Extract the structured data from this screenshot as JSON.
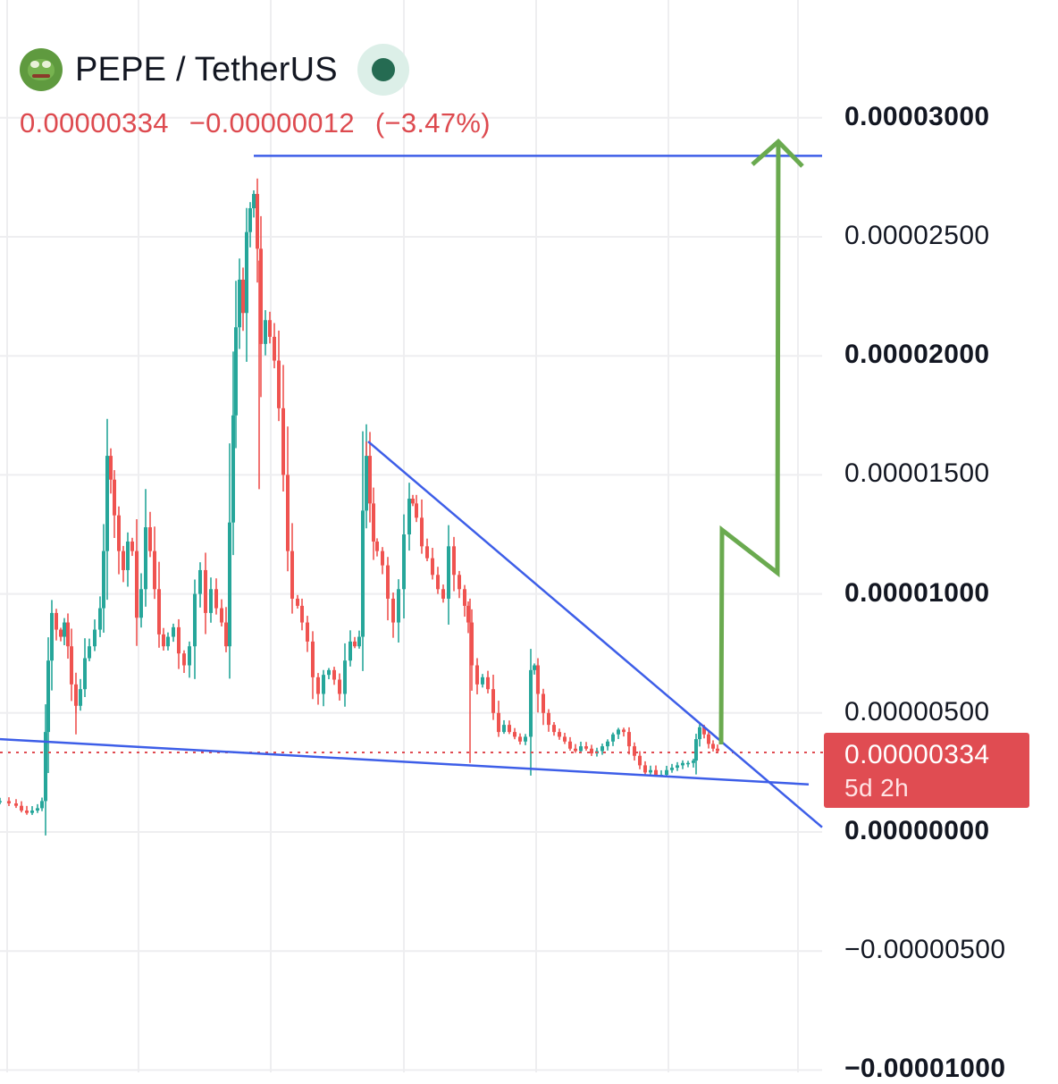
{
  "header": {
    "symbol": "PEPE / TetherUS",
    "logo_icon": "pepe-frog-icon",
    "status_icon": "market-status-dot-icon"
  },
  "quote": {
    "last": "0.00000334",
    "change": "−0.00000012",
    "change_pct": "(−3.47%)"
  },
  "price_tag": {
    "price": "0.00000334",
    "countdown": "5d 2h"
  },
  "colors": {
    "up": "#26a69a",
    "down": "#ef5350",
    "trendline": "#3d5ee8",
    "projection": "#6aaa4f",
    "grid": "#eeeef0",
    "last_price": "#e04c52"
  },
  "chart_data": {
    "type": "candlestick",
    "title": "PEPE / TetherUS",
    "xlabel": "",
    "ylabel": "",
    "ylim": [
      -1e-05,
      3.1e-05
    ],
    "yticks": [
      {
        "value": 3e-05,
        "label": "0.00003000",
        "bold": true
      },
      {
        "value": 2.5e-05,
        "label": "0.00002500",
        "bold": false
      },
      {
        "value": 2e-05,
        "label": "0.00002000",
        "bold": true
      },
      {
        "value": 1.5e-05,
        "label": "0.00001500",
        "bold": false
      },
      {
        "value": 1e-05,
        "label": "0.00001000",
        "bold": true
      },
      {
        "value": 5e-06,
        "label": "0.00000500",
        "bold": false
      },
      {
        "value": 0.0,
        "label": "0.00000000",
        "bold": true
      },
      {
        "value": -5e-06,
        "label": "−0.00000500",
        "bold": false
      },
      {
        "value": -1e-05,
        "label": "−0.00001000",
        "bold": true
      }
    ],
    "grid": true,
    "last_price": 3.34e-06,
    "price_path": [
      [
        0,
        1.3e-06
      ],
      [
        10,
        1.2e-06
      ],
      [
        18,
        1.1e-06
      ],
      [
        24,
        9e-07
      ],
      [
        30,
        8e-07
      ],
      [
        36,
        9e-07
      ],
      [
        42,
        1e-06
      ],
      [
        47,
        1.3e-06
      ],
      [
        51,
        4.2e-06
      ],
      [
        54,
        7.2e-06
      ],
      [
        58,
        9.2e-06
      ],
      [
        63,
        8.5e-06
      ],
      [
        68,
        8.2e-06
      ],
      [
        72,
        8.8e-06
      ],
      [
        76,
        7.8e-06
      ],
      [
        80,
        6.2e-06
      ],
      [
        85,
        5.3e-06
      ],
      [
        90,
        6e-06
      ],
      [
        95,
        7.3e-06
      ],
      [
        100,
        7.8e-06
      ],
      [
        106,
        8.5e-06
      ],
      [
        112,
        9.4e-06
      ],
      [
        116,
        1.18e-05
      ],
      [
        120,
        1.58e-05
      ],
      [
        124,
        1.48e-05
      ],
      [
        128,
        1.33e-05
      ],
      [
        133,
        1.18e-05
      ],
      [
        138,
        1.1e-05
      ],
      [
        143,
        1.22e-05
      ],
      [
        148,
        1.18e-05
      ],
      [
        153,
        9e-06
      ],
      [
        158,
        1.02e-05
      ],
      [
        163,
        1.28e-05
      ],
      [
        168,
        1.18e-05
      ],
      [
        173,
        1.02e-05
      ],
      [
        178,
        8.3e-06
      ],
      [
        183,
        7.8e-06
      ],
      [
        188,
        8.2e-06
      ],
      [
        194,
        8.6e-06
      ],
      [
        200,
        7.5e-06
      ],
      [
        206,
        7e-06
      ],
      [
        212,
        7.8e-06
      ],
      [
        218,
        1e-05
      ],
      [
        224,
        1.1e-05
      ],
      [
        230,
        9.2e-06
      ],
      [
        236,
        1.02e-05
      ],
      [
        242,
        9.4e-06
      ],
      [
        248,
        8.8e-06
      ],
      [
        253,
        7.8e-06
      ],
      [
        257,
        1.3e-05
      ],
      [
        261,
        1.75e-05
      ],
      [
        264,
        2.12e-05
      ],
      [
        268,
        2.32e-05
      ],
      [
        272,
        2.18e-05
      ],
      [
        276,
        2.52e-05
      ],
      [
        280,
        2.62e-05
      ],
      [
        284,
        2.68e-05
      ],
      [
        288,
        2.45e-05
      ],
      [
        292,
        2.05e-05
      ],
      [
        297,
        2.15e-05
      ],
      [
        302,
        2.08e-05
      ],
      [
        307,
        1.98e-05
      ],
      [
        312,
        1.78e-05
      ],
      [
        317,
        1.5e-05
      ],
      [
        322,
        1.18e-05
      ],
      [
        327,
        9.8e-06
      ],
      [
        333,
        9.5e-06
      ],
      [
        338,
        8.8e-06
      ],
      [
        344,
        8e-06
      ],
      [
        350,
        6.5e-06
      ],
      [
        356,
        5.8e-06
      ],
      [
        362,
        6.6e-06
      ],
      [
        368,
        6.8e-06
      ],
      [
        374,
        6.4e-06
      ],
      [
        380,
        5.8e-06
      ],
      [
        386,
        7.2e-06
      ],
      [
        392,
        8e-06
      ],
      [
        397,
        7.8e-06
      ],
      [
        402,
        8.2e-06
      ],
      [
        406,
        1.35e-05
      ],
      [
        410,
        1.58e-05
      ],
      [
        414,
        1.38e-05
      ],
      [
        418,
        1.22e-05
      ],
      [
        422,
        1.18e-05
      ],
      [
        428,
        1.12e-05
      ],
      [
        434,
        9.8e-06
      ],
      [
        440,
        8.8e-06
      ],
      [
        446,
        1.02e-05
      ],
      [
        452,
        1.25e-05
      ],
      [
        458,
        1.4e-05
      ],
      [
        462,
        1.38e-05
      ],
      [
        466,
        1.32e-05
      ],
      [
        472,
        1.2e-05
      ],
      [
        478,
        1.15e-05
      ],
      [
        484,
        1.08e-05
      ],
      [
        490,
        1.02e-05
      ],
      [
        496,
        9.8e-06
      ],
      [
        502,
        1.2e-05
      ],
      [
        508,
        1.08e-05
      ],
      [
        514,
        1.02e-05
      ],
      [
        520,
        9.5e-06
      ],
      [
        524,
        8.8e-06
      ],
      [
        528,
        7e-06
      ],
      [
        534,
        6.2e-06
      ],
      [
        540,
        6.5e-06
      ],
      [
        546,
        6e-06
      ],
      [
        552,
        5e-06
      ],
      [
        558,
        4.2e-06
      ],
      [
        564,
        4.5e-06
      ],
      [
        570,
        4.2e-06
      ],
      [
        576,
        4e-06
      ],
      [
        582,
        3.8e-06
      ],
      [
        588,
        4e-06
      ],
      [
        594,
        6.8e-06
      ],
      [
        598,
        7e-06
      ],
      [
        602,
        5.8e-06
      ],
      [
        608,
        5e-06
      ],
      [
        614,
        4.5e-06
      ],
      [
        620,
        4.2e-06
      ],
      [
        626,
        4e-06
      ],
      [
        632,
        3.8e-06
      ],
      [
        638,
        3.5e-06
      ],
      [
        644,
        3.4e-06
      ],
      [
        650,
        3.6e-06
      ],
      [
        656,
        3.5e-06
      ],
      [
        662,
        3.3e-06
      ],
      [
        668,
        3.4e-06
      ],
      [
        674,
        3.6e-06
      ],
      [
        680,
        3.8e-06
      ],
      [
        686,
        4.1e-06
      ],
      [
        692,
        4.3e-06
      ],
      [
        698,
        4.2e-06
      ],
      [
        704,
        3.6e-06
      ],
      [
        710,
        3.2e-06
      ],
      [
        716,
        2.8e-06
      ],
      [
        722,
        2.5e-06
      ],
      [
        728,
        2.6e-06
      ],
      [
        734,
        2.4e-06
      ],
      [
        740,
        2.4e-06
      ],
      [
        746,
        2.6e-06
      ],
      [
        752,
        2.7e-06
      ],
      [
        758,
        2.8e-06
      ],
      [
        764,
        2.9e-06
      ],
      [
        770,
        2.9e-06
      ],
      [
        776,
        3e-06
      ],
      [
        779,
        3.9e-06
      ],
      [
        783,
        4.4e-06
      ],
      [
        788,
        4.1e-06
      ],
      [
        793,
        3.7e-06
      ],
      [
        798,
        3.5e-06
      ],
      [
        803,
        3.4e-06
      ]
    ],
    "drawings": {
      "resistance_line": {
        "price": 2.84e-05
      },
      "falling_wedge_upper": {
        "from_price": 1.64e-05,
        "to_price": 2e-07
      },
      "falling_wedge_lower": {
        "from_price": 3.9e-06,
        "to_price": 2e-06
      },
      "projection_arrow": {
        "target_price": 2.9e-05
      }
    }
  }
}
